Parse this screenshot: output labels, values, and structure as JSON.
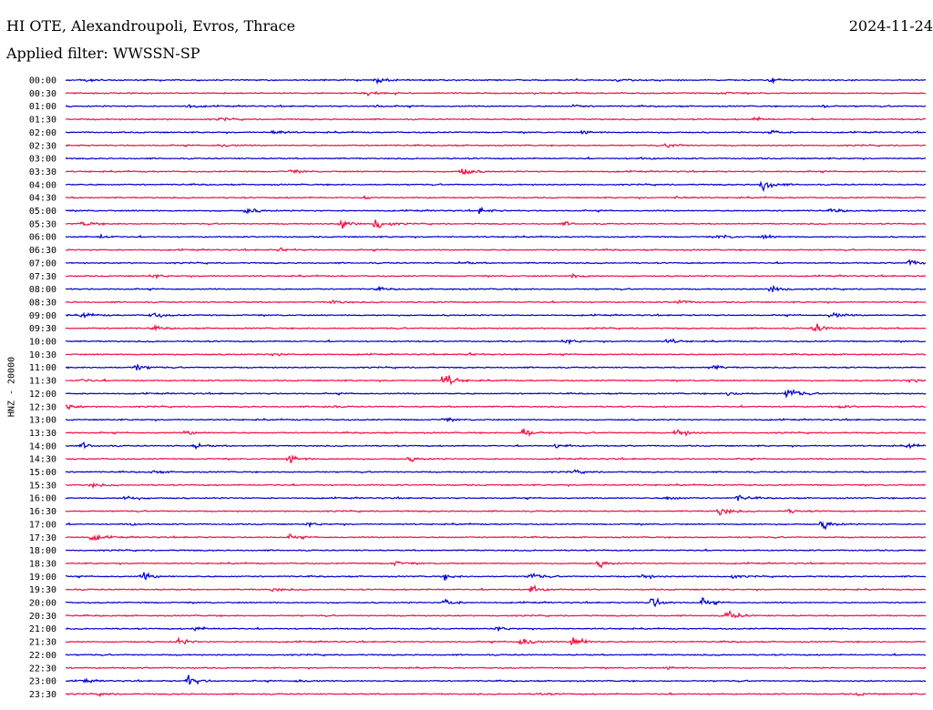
{
  "header": {
    "station": "HI OTE, Alexandroupoli, Evros, Thrace",
    "date": "2024-11-24",
    "filter": "Applied filter: WWSSN-SP"
  },
  "chart_data": {
    "type": "line",
    "title": "HI OTE, Alexandroupoli, Evros, Thrace",
    "ylabel": "HNZ - 20000",
    "colors": [
      "#0000cc",
      "#ee1144"
    ],
    "rows": [
      {
        "label": "00:00",
        "events": [
          [
            0.02,
            0.5
          ],
          [
            0.36,
            1.0
          ],
          [
            0.64,
            0.5
          ],
          [
            0.82,
            0.8
          ]
        ]
      },
      {
        "label": "00:30",
        "events": [
          [
            0.35,
            0.5
          ],
          [
            0.76,
            0.5
          ]
        ]
      },
      {
        "label": "01:00",
        "events": [
          [
            0.14,
            0.6
          ],
          [
            0.36,
            0.4
          ],
          [
            0.59,
            0.4
          ],
          [
            0.88,
            0.4
          ]
        ]
      },
      {
        "label": "01:30",
        "events": [
          [
            0.18,
            0.4
          ],
          [
            0.8,
            0.6
          ]
        ]
      },
      {
        "label": "02:00",
        "events": [
          [
            0.24,
            0.8
          ],
          [
            0.6,
            0.6
          ],
          [
            0.82,
            0.9
          ]
        ]
      },
      {
        "label": "02:30",
        "events": [
          [
            0.18,
            0.6
          ],
          [
            0.7,
            0.8
          ]
        ]
      },
      {
        "label": "03:00",
        "events": [
          [
            0.67,
            0.4
          ]
        ]
      },
      {
        "label": "03:30",
        "events": [
          [
            0.26,
            0.5
          ],
          [
            0.46,
            1.4
          ]
        ]
      },
      {
        "label": "04:00",
        "events": [
          [
            0.81,
            2.0
          ]
        ]
      },
      {
        "label": "04:30",
        "events": [
          [
            0.35,
            0.4
          ],
          [
            0.71,
            0.4
          ]
        ]
      },
      {
        "label": "05:00",
        "events": [
          [
            0.21,
            0.9
          ],
          [
            0.48,
            0.9
          ],
          [
            0.89,
            0.6
          ]
        ]
      },
      {
        "label": "05:30",
        "events": [
          [
            0.02,
            0.8
          ],
          [
            0.32,
            1.6
          ],
          [
            0.36,
            2.3
          ],
          [
            0.58,
            0.5
          ]
        ]
      },
      {
        "label": "06:00",
        "events": [
          [
            0.04,
            0.6
          ],
          [
            0.76,
            0.6
          ],
          [
            0.81,
            0.6
          ]
        ]
      },
      {
        "label": "06:30",
        "events": [
          [
            0.25,
            0.6
          ]
        ]
      },
      {
        "label": "07:00",
        "events": [
          [
            0.46,
            0.5
          ],
          [
            0.98,
            1.0
          ]
        ]
      },
      {
        "label": "07:30",
        "events": [
          [
            0.1,
            0.5
          ],
          [
            0.59,
            0.8
          ]
        ]
      },
      {
        "label": "08:00",
        "events": [
          [
            0.36,
            0.5
          ],
          [
            0.82,
            1.6
          ]
        ]
      },
      {
        "label": "08:30",
        "events": [
          [
            0.31,
            0.6
          ],
          [
            0.71,
            0.9
          ]
        ]
      },
      {
        "label": "09:00",
        "events": [
          [
            0.02,
            0.8
          ],
          [
            0.1,
            1.0
          ],
          [
            0.89,
            1.2
          ]
        ]
      },
      {
        "label": "09:30",
        "events": [
          [
            0.1,
            0.6
          ],
          [
            0.87,
            1.6
          ]
        ]
      },
      {
        "label": "10:00",
        "events": [
          [
            0.58,
            0.6
          ],
          [
            0.7,
            0.7
          ]
        ]
      },
      {
        "label": "10:30",
        "events": [
          [
            0.24,
            0.6
          ],
          [
            0.47,
            0.4
          ]
        ]
      },
      {
        "label": "11:00",
        "events": [
          [
            0.08,
            1.2
          ],
          [
            0.75,
            0.8
          ]
        ]
      },
      {
        "label": "11:30",
        "events": [
          [
            0.02,
            0.7
          ],
          [
            0.44,
            2.2
          ],
          [
            0.98,
            0.8
          ]
        ]
      },
      {
        "label": "12:00",
        "events": [
          [
            0.77,
            0.7
          ],
          [
            0.84,
            2.0
          ]
        ]
      },
      {
        "label": "12:30",
        "events": [
          [
            0.0,
            0.9
          ],
          [
            0.3,
            0.5
          ],
          [
            0.9,
            0.4
          ]
        ]
      },
      {
        "label": "13:00",
        "events": [
          [
            0.44,
            0.5
          ]
        ]
      },
      {
        "label": "13:30",
        "events": [
          [
            0.14,
            0.7
          ],
          [
            0.53,
            2.0
          ],
          [
            0.71,
            1.4
          ]
        ]
      },
      {
        "label": "14:00",
        "events": [
          [
            0.02,
            0.8
          ],
          [
            0.15,
            0.8
          ],
          [
            0.57,
            0.8
          ],
          [
            0.98,
            0.7
          ]
        ]
      },
      {
        "label": "14:30",
        "events": [
          [
            0.26,
            1.5
          ],
          [
            0.4,
            0.6
          ]
        ]
      },
      {
        "label": "15:00",
        "events": [
          [
            0.1,
            0.5
          ],
          [
            0.59,
            0.6
          ]
        ]
      },
      {
        "label": "15:30",
        "events": [
          [
            0.03,
            0.6
          ]
        ]
      },
      {
        "label": "16:00",
        "events": [
          [
            0.07,
            0.9
          ],
          [
            0.7,
            0.8
          ],
          [
            0.78,
            1.0
          ]
        ]
      },
      {
        "label": "16:30",
        "events": [
          [
            0.76,
            1.4
          ],
          [
            0.84,
            0.5
          ]
        ]
      },
      {
        "label": "17:00",
        "events": [
          [
            0.07,
            0.5
          ],
          [
            0.28,
            0.5
          ],
          [
            0.88,
            1.3
          ]
        ]
      },
      {
        "label": "17:30",
        "events": [
          [
            0.03,
            1.2
          ],
          [
            0.26,
            0.6
          ]
        ]
      },
      {
        "label": "18:00",
        "events": []
      },
      {
        "label": "18:30",
        "events": [
          [
            0.38,
            0.8
          ],
          [
            0.62,
            1.0
          ]
        ]
      },
      {
        "label": "19:00",
        "events": [
          [
            0.09,
            1.2
          ],
          [
            0.44,
            0.8
          ],
          [
            0.54,
            1.2
          ],
          [
            0.67,
            0.8
          ],
          [
            0.77,
            0.8
          ]
        ]
      },
      {
        "label": "19:30",
        "events": [
          [
            0.24,
            0.6
          ],
          [
            0.54,
            1.4
          ]
        ]
      },
      {
        "label": "20:00",
        "events": [
          [
            0.44,
            1.4
          ],
          [
            0.68,
            2.0
          ],
          [
            0.74,
            1.0
          ]
        ]
      },
      {
        "label": "20:30",
        "events": [
          [
            0.77,
            1.6
          ]
        ]
      },
      {
        "label": "21:00",
        "events": [
          [
            0.15,
            0.6
          ],
          [
            0.5,
            0.6
          ]
        ]
      },
      {
        "label": "21:30",
        "events": [
          [
            0.13,
            1.0
          ],
          [
            0.53,
            1.8
          ],
          [
            0.59,
            2.0
          ]
        ]
      },
      {
        "label": "22:00",
        "events": []
      },
      {
        "label": "22:30",
        "events": [
          [
            0.7,
            0.4
          ]
        ]
      },
      {
        "label": "23:00",
        "events": [
          [
            0.02,
            0.5
          ],
          [
            0.14,
            2.0
          ],
          [
            0.27,
            0.5
          ]
        ]
      },
      {
        "label": "23:30",
        "events": [
          [
            0.04,
            0.4
          ],
          [
            0.55,
            0.4
          ],
          [
            0.92,
            0.4
          ]
        ]
      }
    ]
  }
}
